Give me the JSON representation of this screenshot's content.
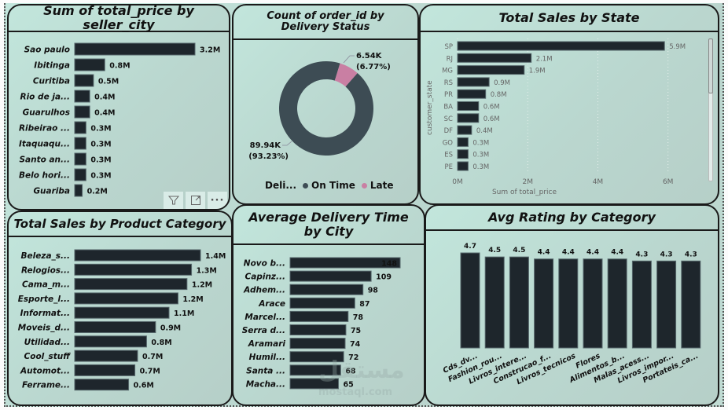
{
  "chart_data": [
    {
      "id": "seller_city",
      "type": "bar",
      "orientation": "horizontal",
      "title": "Sum of total_price by seller_city",
      "categories": [
        "Sao paulo",
        "Ibitinga",
        "Curitiba",
        "Rio de ja...",
        "Guarulhos",
        "Ribeirao ...",
        "Itaquaqu...",
        "Santo an...",
        "Belo hori...",
        "Guariba"
      ],
      "values": [
        3.2,
        0.8,
        0.5,
        0.4,
        0.4,
        0.3,
        0.3,
        0.3,
        0.3,
        0.2
      ],
      "data_labels": [
        "3.2M",
        "0.8M",
        "0.5M",
        "0.4M",
        "0.4M",
        "0.3M",
        "0.3M",
        "0.3M",
        "0.3M",
        "0.2M"
      ],
      "unit": "M",
      "xlabel": "",
      "ylabel": "",
      "xlim": [
        0,
        3.2
      ],
      "grid": false
    },
    {
      "id": "delivery_status",
      "type": "pie",
      "variant": "donut",
      "title": "Count of order_id by Delivery Status",
      "categories": [
        "On Time",
        "Late"
      ],
      "values": [
        89.94,
        6.54
      ],
      "unit": "K",
      "data_labels": [
        {
          "value": "89.94K",
          "percent": "(93.23%)"
        },
        {
          "value": "6.54K",
          "percent": "(6.77%)"
        }
      ],
      "colors": [
        "#3d4c54",
        "#c97fa3"
      ],
      "legend": {
        "title": "Deli...",
        "items": [
          "On Time",
          "Late"
        ],
        "placement": "bottom"
      }
    },
    {
      "id": "state",
      "type": "bar",
      "orientation": "horizontal",
      "title": "Total Sales by State",
      "categories": [
        "SP",
        "RJ",
        "MG",
        "RS",
        "PR",
        "BA",
        "SC",
        "DF",
        "GO",
        "ES",
        "PE"
      ],
      "values": [
        5.9,
        2.1,
        1.9,
        0.9,
        0.8,
        0.6,
        0.6,
        0.4,
        0.3,
        0.3,
        0.3
      ],
      "data_labels": [
        "5.9M",
        "2.1M",
        "1.9M",
        "0.9M",
        "0.8M",
        "0.6M",
        "0.6M",
        "0.4M",
        "0.3M",
        "0.3M",
        "0.3M"
      ],
      "xlabel": "Sum of total_price",
      "ylabel": "customer_state",
      "xticks": [
        "0M",
        "2M",
        "4M",
        "6M"
      ],
      "xlim": [
        0,
        6.5
      ],
      "grid": true
    },
    {
      "id": "product_category",
      "type": "bar",
      "orientation": "horizontal",
      "title": "Total Sales by Product Category",
      "categories": [
        "Beleza_s...",
        "Relogios...",
        "Cama_m...",
        "Esporte_l...",
        "Informat...",
        "Moveis_d...",
        "Utilidad...",
        "Cool_stuff",
        "Automot...",
        "Ferrame..."
      ],
      "values": [
        1.4,
        1.3,
        1.25,
        1.15,
        1.05,
        0.9,
        0.8,
        0.7,
        0.67,
        0.6
      ],
      "data_labels": [
        "1.4M",
        "1.3M",
        "1.2M",
        "1.2M",
        "1.1M",
        "0.9M",
        "0.8M",
        "0.7M",
        "0.7M",
        "0.6M"
      ],
      "xlim": [
        0,
        1.4
      ],
      "grid": false
    },
    {
      "id": "delivery_time_city",
      "type": "bar",
      "orientation": "horizontal",
      "title": "Average Delivery Time by City",
      "categories": [
        "Novo b...",
        "Capinz...",
        "Adhem...",
        "Arace",
        "Marcel...",
        "Serra d...",
        "Aramari",
        "Humil...",
        "Santa ...",
        "Macha..."
      ],
      "values": [
        148,
        109,
        98,
        87,
        78,
        75,
        74,
        72,
        68,
        65
      ],
      "data_labels": [
        "148",
        "109",
        "98",
        "87",
        "78",
        "75",
        "74",
        "72",
        "68",
        "65"
      ],
      "xlim": [
        0,
        148
      ],
      "grid": false
    },
    {
      "id": "rating_category",
      "type": "bar",
      "orientation": "vertical",
      "title": "Avg Rating by Category",
      "categories": [
        "Cds_dv...",
        "Fashion_rou...",
        "Livros_intere...",
        "Construcao_f...",
        "Livros_tecnicos",
        "Flores",
        "Alimentos_b...",
        "Malas_acess...",
        "Livros_impor...",
        "Portateis_ca..."
      ],
      "values": [
        4.7,
        4.5,
        4.5,
        4.4,
        4.4,
        4.4,
        4.4,
        4.3,
        4.3,
        4.3
      ],
      "data_labels": [
        "4.7",
        "4.5",
        "4.5",
        "4.4",
        "4.4",
        "4.4",
        "4.4",
        "4.3",
        "4.3",
        "4.3"
      ],
      "ylim": [
        0,
        4.7
      ],
      "grid": false
    }
  ],
  "visual_toolbar": {
    "filter_icon": "filter-icon",
    "focus_icon": "focus-mode-icon",
    "more_icon": "more-options-icon"
  },
  "watermark": {
    "text_ar": "مستقل",
    "text_en": "mostaql.com"
  }
}
